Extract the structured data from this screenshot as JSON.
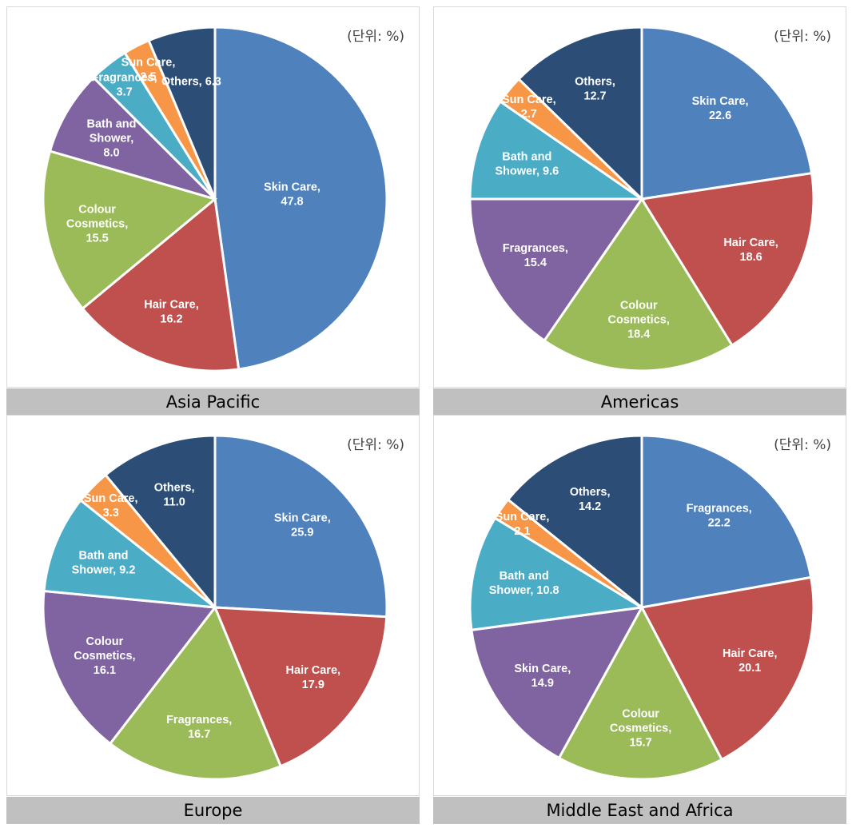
{
  "chart_data": [
    {
      "type": "pie",
      "title": "Asia Pacific",
      "unit_note": "(단위: %)",
      "categories": [
        "Skin Care",
        "Hair Care",
        "Colour Cosmetics",
        "Bath and Shower",
        "Fragrances",
        "Sun Care",
        "Others"
      ],
      "values": [
        47.8,
        16.2,
        15.5,
        8.0,
        3.7,
        2.5,
        6.3
      ],
      "labels": [
        [
          "Skin Care,",
          "47.8"
        ],
        [
          "Hair Care,",
          "16.2"
        ],
        [
          "Colour",
          "Cosmetics,",
          "15.5"
        ],
        [
          "Bath and",
          "Shower,",
          "8.0"
        ],
        [
          "Fragrances,",
          "3.7"
        ],
        [
          "Sun Care,",
          "2.5"
        ],
        [
          "Others, 6.3"
        ]
      ],
      "colors": [
        "#4f81bd",
        "#c0504d",
        "#9bbb59",
        "#8064a2",
        "#4bacc6",
        "#f79646",
        "#2c4d75"
      ]
    },
    {
      "type": "pie",
      "title": "Americas",
      "unit_note": "(단위: %)",
      "categories": [
        "Skin Care",
        "Hair Care",
        "Colour Cosmetics",
        "Fragrances",
        "Bath and Shower",
        "Sun Care",
        "Others"
      ],
      "values": [
        22.6,
        18.6,
        18.4,
        15.4,
        9.6,
        2.7,
        12.7
      ],
      "labels": [
        [
          "Skin Care,",
          "22.6"
        ],
        [
          "Hair Care,",
          "18.6"
        ],
        [
          "Colour",
          "Cosmetics,",
          "18.4"
        ],
        [
          "Fragrances,",
          "15.4"
        ],
        [
          "Bath and",
          "Shower, 9.6"
        ],
        [
          "Sun Care,",
          "2.7"
        ],
        [
          "Others,",
          "12.7"
        ]
      ],
      "colors": [
        "#4f81bd",
        "#c0504d",
        "#9bbb59",
        "#8064a2",
        "#4bacc6",
        "#f79646",
        "#2c4d75"
      ]
    },
    {
      "type": "pie",
      "title": "Europe",
      "unit_note": "(단위: %)",
      "categories": [
        "Skin Care",
        "Hair Care",
        "Fragrances",
        "Colour Cosmetics",
        "Bath and Shower",
        "Sun Care",
        "Others"
      ],
      "values": [
        25.9,
        17.9,
        16.7,
        16.1,
        9.2,
        3.3,
        11.0
      ],
      "labels": [
        [
          "Skin Care,",
          "25.9"
        ],
        [
          "Hair Care,",
          "17.9"
        ],
        [
          "Fragrances,",
          "16.7"
        ],
        [
          "Colour",
          "Cosmetics,",
          "16.1"
        ],
        [
          "Bath and",
          "Shower, 9.2"
        ],
        [
          "Sun Care,",
          "3.3"
        ],
        [
          "Others,",
          "11.0"
        ]
      ],
      "colors": [
        "#4f81bd",
        "#c0504d",
        "#9bbb59",
        "#8064a2",
        "#4bacc6",
        "#f79646",
        "#2c4d75"
      ]
    },
    {
      "type": "pie",
      "title": "Middle East and Africa",
      "unit_note": "(단위: %)",
      "categories": [
        "Fragrances",
        "Hair Care",
        "Colour Cosmetics",
        "Skin Care",
        "Bath and Shower",
        "Sun Care",
        "Others"
      ],
      "values": [
        22.2,
        20.1,
        15.7,
        14.9,
        10.8,
        2.1,
        14.2
      ],
      "labels": [
        [
          "Fragrances,",
          "22.2"
        ],
        [
          "Hair Care,",
          "20.1"
        ],
        [
          "Colour",
          "Cosmetics,",
          "15.7"
        ],
        [
          "Skin Care,",
          "14.9"
        ],
        [
          "Bath and",
          "Shower, 10.8"
        ],
        [
          "Sun Care,",
          "2.1"
        ],
        [
          "Others,",
          "14.2"
        ]
      ],
      "colors": [
        "#4f81bd",
        "#c0504d",
        "#9bbb59",
        "#8064a2",
        "#4bacc6",
        "#f79646",
        "#2c4d75"
      ]
    }
  ]
}
